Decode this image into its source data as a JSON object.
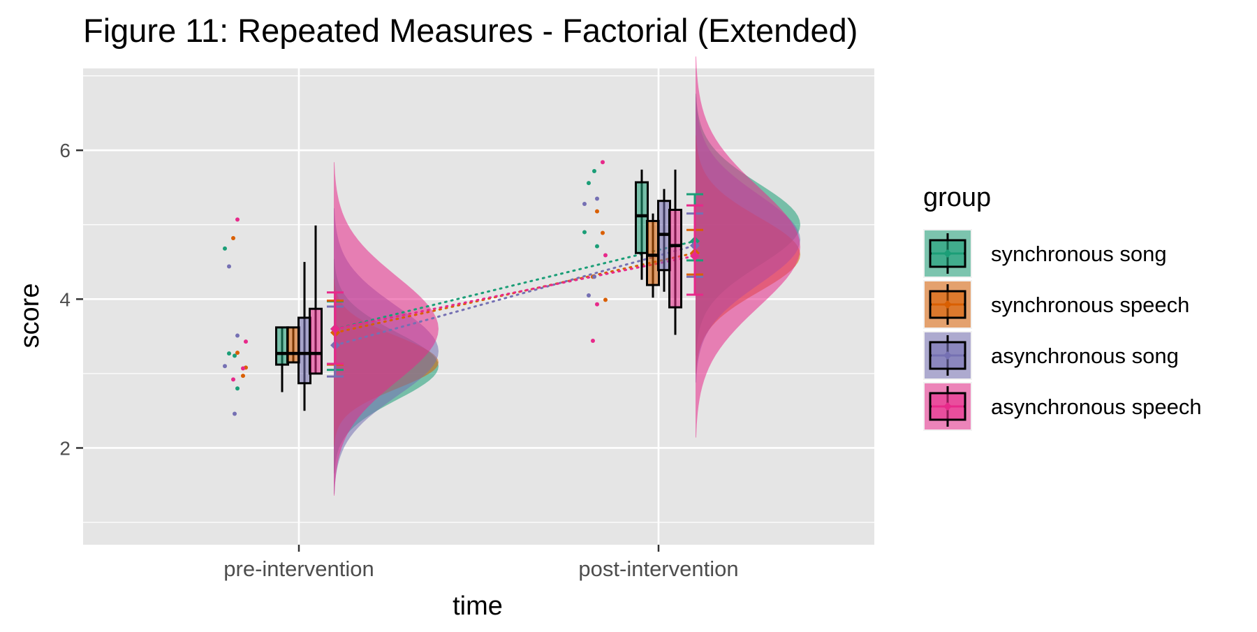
{
  "chart_data": {
    "type": "raincloud",
    "title": "Figure 11: Repeated Measures - Factorial (Extended)",
    "xlabel": "time",
    "ylabel": "score",
    "categories": [
      "pre-intervention",
      "post-intervention"
    ],
    "ylim": [
      0.7,
      7.1
    ],
    "yticks": [
      2,
      4,
      6
    ],
    "grid": true,
    "legend": {
      "title": "group",
      "position": "right"
    },
    "series": [
      {
        "name": "synchronous song",
        "color": "#1b9e77",
        "points": [
          [
            3.27,
            3.24,
            4.68,
            2.8
          ],
          [
            5.56,
            5.72,
            4.9,
            4.71
          ]
        ],
        "box": [
          {
            "q1": 3.12,
            "median": 3.27,
            "q3": 3.62,
            "lo": 2.75,
            "hi": 3.62
          },
          {
            "q1": 4.62,
            "median": 5.12,
            "q3": 5.57,
            "lo": 4.26,
            "hi": 5.74
          }
        ],
        "mean": [
          3.6,
          4.78
        ],
        "ci": [
          [
            3.05,
            3.97
          ],
          [
            4.52,
            5.41
          ]
        ],
        "density": [
          {
            "mode": 3.1,
            "sd": 0.45
          },
          {
            "mode": 5.0,
            "sd": 0.55
          }
        ]
      },
      {
        "name": "synchronous speech",
        "color": "#d95f02",
        "points": [
          [
            3.28,
            2.97,
            4.82,
            3.08
          ],
          [
            5.18,
            4.89,
            4.3,
            3.99
          ]
        ],
        "box": [
          {
            "q1": 3.15,
            "median": 3.27,
            "q3": 3.62,
            "lo": 3.15,
            "hi": 3.62
          },
          {
            "q1": 4.19,
            "median": 4.59,
            "q3": 5.05,
            "lo": 4.02,
            "hi": 5.15
          }
        ],
        "mean": [
          3.55,
          4.62
        ],
        "ci": [
          [
            3.12,
            3.98
          ],
          [
            4.33,
            4.93
          ]
        ],
        "density": [
          {
            "mode": 3.15,
            "sd": 0.35
          },
          {
            "mode": 4.6,
            "sd": 0.5
          }
        ]
      },
      {
        "name": "asynchronous song",
        "color": "#7570b3",
        "points": [
          [
            4.44,
            2.46,
            3.1,
            3.51
          ],
          [
            4.05,
            4.3,
            5.28,
            5.35
          ]
        ],
        "box": [
          {
            "q1": 2.87,
            "median": 3.27,
            "q3": 3.75,
            "lo": 2.5,
            "hi": 4.5
          },
          {
            "q1": 4.39,
            "median": 4.87,
            "q3": 5.32,
            "lo": 4.1,
            "hi": 5.48
          }
        ],
        "mean": [
          3.38,
          4.72
        ],
        "ci": [
          [
            2.96,
            3.9
          ],
          [
            4.3,
            5.15
          ]
        ],
        "density": [
          {
            "mode": 3.3,
            "sd": 0.6
          },
          {
            "mode": 4.8,
            "sd": 0.6
          }
        ]
      },
      {
        "name": "asynchronous speech",
        "color": "#e7298a",
        "points": [
          [
            5.07,
            3.07,
            2.92,
            3.43
          ],
          [
            3.93,
            5.84,
            3.44,
            4.59
          ]
        ],
        "box": [
          {
            "q1": 3.0,
            "median": 3.27,
            "q3": 3.87,
            "lo": 3.0,
            "hi": 4.99
          },
          {
            "q1": 3.89,
            "median": 4.72,
            "q3": 5.2,
            "lo": 3.52,
            "hi": 5.74
          }
        ],
        "mean": [
          3.6,
          4.58
        ],
        "ci": [
          [
            3.13,
            4.09
          ],
          [
            4.06,
            5.26
          ]
        ],
        "density": [
          {
            "mode": 3.6,
            "sd": 0.7
          },
          {
            "mode": 4.7,
            "sd": 0.8
          }
        ]
      }
    ]
  }
}
